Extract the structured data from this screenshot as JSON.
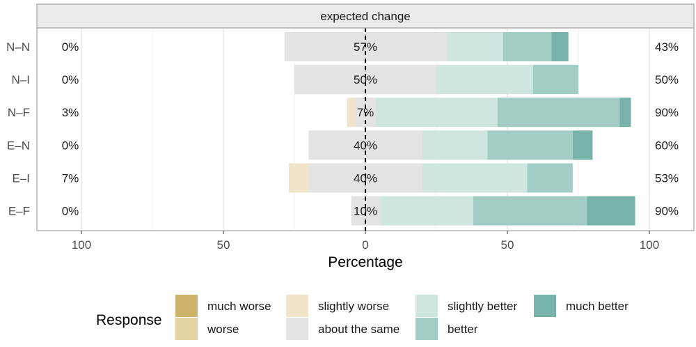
{
  "chart_data": {
    "type": "bar",
    "orientation": "horizontal",
    "stacked": "diverging",
    "facet_title": "expected change",
    "xlabel": "Percentage",
    "xlim": [
      -110,
      110
    ],
    "x_ticks": [
      -100,
      -50,
      0,
      50,
      100
    ],
    "x_tick_labels": [
      "100",
      "50",
      "0",
      "50",
      "100"
    ],
    "categories": [
      "N–N",
      "N–I",
      "N–F",
      "E–N",
      "E–I",
      "E–F"
    ],
    "legend_title": "Response",
    "legend_position": "bottom",
    "levels": [
      "much worse",
      "worse",
      "slightly worse",
      "about the same",
      "slightly better",
      "better",
      "much better"
    ],
    "colors": {
      "much worse": "#cdb46a",
      "worse": "#e5d3a1",
      "slightly worse": "#efe3c8",
      "about the same": "#e3e3e3",
      "slightly better": "#cfe5e0",
      "better": "#a2cdc5",
      "much better": "#78b3a9"
    },
    "series": [
      {
        "name": "much worse",
        "values": [
          0,
          0,
          0,
          0,
          0,
          0
        ]
      },
      {
        "name": "worse",
        "values": [
          0,
          0,
          0,
          0,
          0,
          0
        ]
      },
      {
        "name": "slightly worse",
        "values": [
          0,
          0,
          3,
          0,
          7,
          0
        ]
      },
      {
        "name": "about the same",
        "values": [
          57,
          50,
          7,
          40,
          40,
          10
        ]
      },
      {
        "name": "slightly better",
        "values": [
          20,
          34,
          43,
          23,
          37,
          33
        ]
      },
      {
        "name": "better",
        "values": [
          17,
          16,
          43,
          30,
          16,
          40
        ]
      },
      {
        "name": "much better",
        "values": [
          6,
          0,
          4,
          7,
          0,
          17
        ]
      }
    ],
    "left_labels": [
      "0%",
      "0%",
      "3%",
      "0%",
      "7%",
      "0%"
    ],
    "center_labels": [
      "57%",
      "50%",
      "7%",
      "40%",
      "40%",
      "10%"
    ],
    "right_labels": [
      "43%",
      "50%",
      "90%",
      "60%",
      "53%",
      "90%"
    ],
    "grid": true,
    "zero_line": "dashed"
  }
}
